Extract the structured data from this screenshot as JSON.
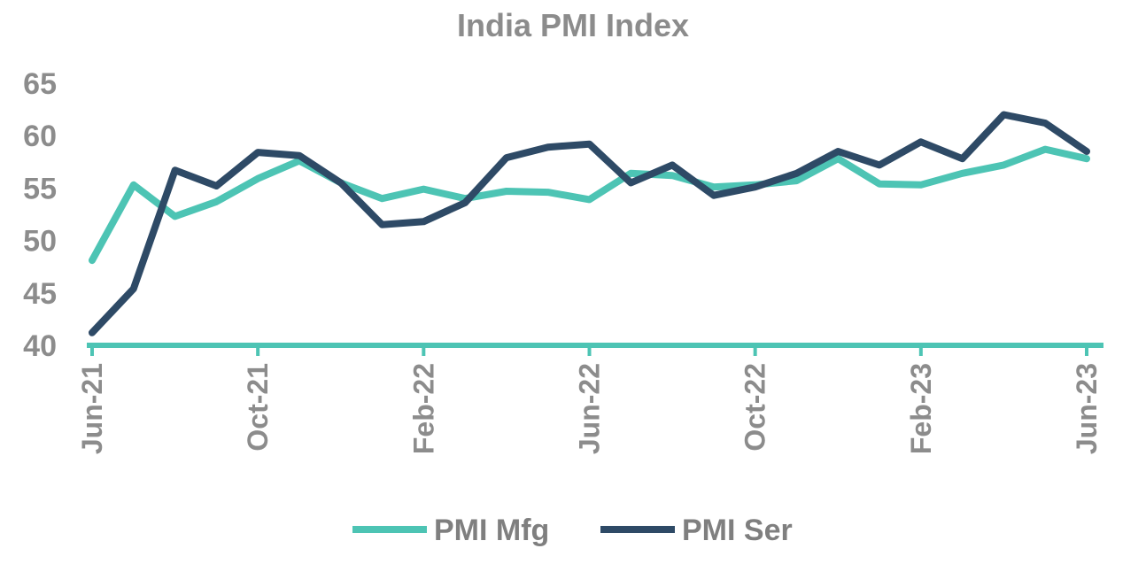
{
  "chart_data": {
    "type": "line",
    "title": "India PMI Index",
    "xlabel": "",
    "ylabel": "",
    "ylim": [
      40,
      65
    ],
    "yticks": [
      40,
      45,
      50,
      55,
      60,
      65
    ],
    "x": [
      "Jun-21",
      "Jul-21",
      "Aug-21",
      "Sep-21",
      "Oct-21",
      "Nov-21",
      "Dec-21",
      "Jan-22",
      "Feb-22",
      "Mar-22",
      "Apr-22",
      "May-22",
      "Jun-22",
      "Jul-22",
      "Aug-22",
      "Sep-22",
      "Oct-22",
      "Nov-22",
      "Dec-22",
      "Jan-23",
      "Feb-23",
      "Mar-23",
      "Apr-23",
      "May-23",
      "Jun-23"
    ],
    "tick_labels": [
      "Jun-21",
      "Oct-21",
      "Feb-22",
      "Jun-22",
      "Oct-22",
      "Feb-23",
      "Jun-23"
    ],
    "grid": false,
    "legend_position": "bottom",
    "series": [
      {
        "name": "PMI Mfg",
        "color": "#4dc4b4",
        "values": [
          48.1,
          55.3,
          52.3,
          53.7,
          55.9,
          57.6,
          55.5,
          54.0,
          54.9,
          54.0,
          54.7,
          54.6,
          53.9,
          56.4,
          56.2,
          55.1,
          55.3,
          55.7,
          57.8,
          55.4,
          55.3,
          56.4,
          57.2,
          58.7,
          57.8
        ]
      },
      {
        "name": "PMI Ser",
        "color": "#2e4a66",
        "values": [
          41.2,
          45.4,
          56.7,
          55.2,
          58.4,
          58.1,
          55.5,
          51.5,
          51.8,
          53.6,
          57.9,
          58.9,
          59.2,
          55.5,
          57.2,
          54.3,
          55.1,
          56.4,
          58.5,
          57.2,
          59.4,
          57.8,
          62.0,
          61.2,
          58.5
        ]
      }
    ]
  }
}
